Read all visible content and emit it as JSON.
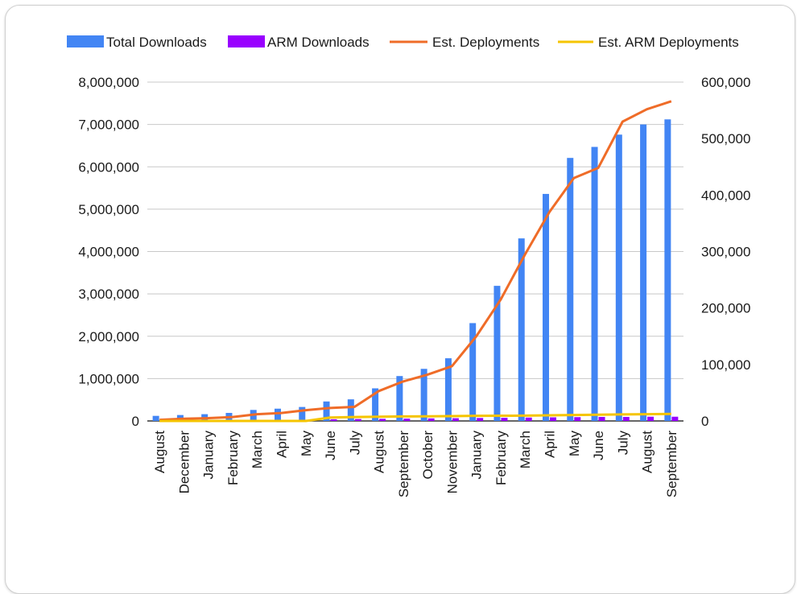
{
  "chart_data": {
    "type": "bar",
    "title": "",
    "legend_position": "top",
    "categories": [
      "August",
      "December",
      "January",
      "February",
      "March",
      "April",
      "May",
      "June",
      "July",
      "August",
      "September",
      "October",
      "November",
      "January",
      "February",
      "March",
      "April",
      "May",
      "June",
      "July",
      "August",
      "September"
    ],
    "y_left": {
      "ylim": [
        0,
        8000000
      ],
      "ticks": [
        "0",
        "1,000,000",
        "2,000,000",
        "3,000,000",
        "4,000,000",
        "5,000,000",
        "6,000,000",
        "7,000,000",
        "8,000,000"
      ],
      "tick_values": [
        0,
        1000000,
        2000000,
        3000000,
        4000000,
        5000000,
        6000000,
        7000000,
        8000000
      ]
    },
    "y_right": {
      "ylim": [
        0,
        600000
      ],
      "ticks": [
        "0",
        "100,000",
        "200,000",
        "300,000",
        "400,000",
        "500,000",
        "600,000"
      ],
      "tick_values": [
        0,
        100000,
        200000,
        300000,
        400000,
        500000,
        600000
      ]
    },
    "grid": true,
    "series": [
      {
        "name": "Total Downloads",
        "kind": "bar",
        "axis": "left",
        "color": "#4285f4",
        "values": [
          120000,
          140000,
          160000,
          190000,
          260000,
          290000,
          330000,
          460000,
          510000,
          770000,
          1060000,
          1230000,
          1480000,
          2310000,
          3190000,
          4310000,
          5360000,
          6210000,
          6470000,
          6760000,
          7000000,
          7120000
        ]
      },
      {
        "name": "ARM Downloads",
        "kind": "bar",
        "axis": "left",
        "color": "#9900ff",
        "values": [
          0,
          0,
          0,
          0,
          0,
          0,
          0,
          40000,
          45000,
          50000,
          55000,
          60000,
          65000,
          70000,
          75000,
          80000,
          85000,
          90000,
          95000,
          95000,
          100000,
          100000
        ]
      },
      {
        "name": "Est. Deployments",
        "kind": "line",
        "axis": "right",
        "color": "#ef6c28",
        "values": [
          2000,
          4000,
          5000,
          7000,
          12000,
          14000,
          19000,
          23000,
          25000,
          53000,
          70000,
          82000,
          97000,
          150000,
          215000,
          295000,
          370000,
          430000,
          448000,
          530000,
          552000,
          566000
        ]
      },
      {
        "name": "Est. ARM Deployments",
        "kind": "line",
        "axis": "right",
        "color": "#f5c400",
        "values": [
          0,
          0,
          0,
          0,
          0,
          0,
          0,
          6000,
          7000,
          7500,
          8000,
          8200,
          8500,
          9000,
          9200,
          9500,
          10000,
          10500,
          11000,
          11500,
          12000,
          12500
        ]
      }
    ]
  }
}
